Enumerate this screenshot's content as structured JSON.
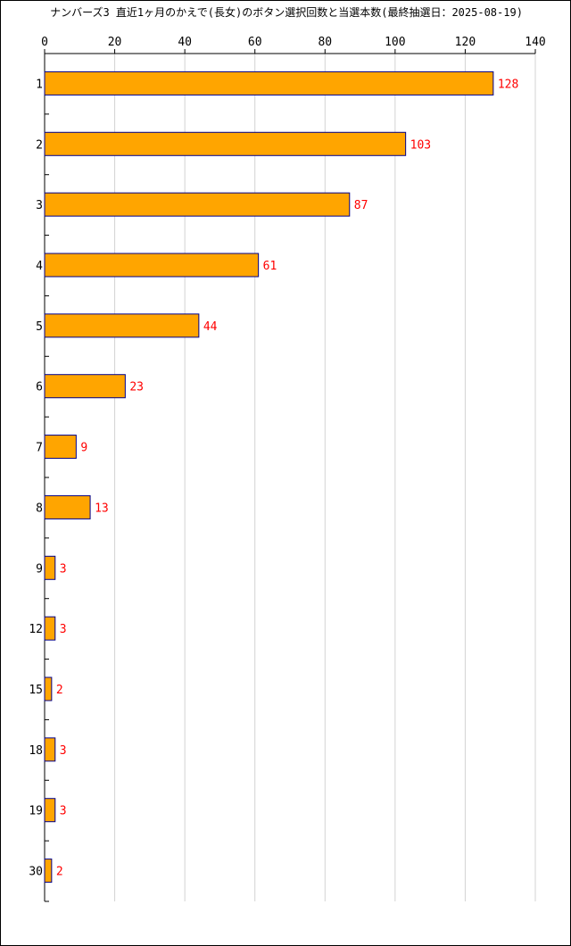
{
  "chart_data": {
    "type": "bar",
    "orientation": "horizontal",
    "title": "ナンバーズ3 直近1ヶ月のかえで(長女)のボタン選択回数と当選本数(最終抽選日：2025-08-19)",
    "categories": [
      "1",
      "2",
      "3",
      "4",
      "5",
      "6",
      "7",
      "8",
      "9",
      "12",
      "15",
      "18",
      "19",
      "30"
    ],
    "values": [
      128,
      103,
      87,
      61,
      44,
      23,
      9,
      13,
      3,
      3,
      2,
      3,
      3,
      2
    ],
    "xlim": [
      0,
      140
    ],
    "xticks": [
      0,
      20,
      40,
      60,
      80,
      100,
      120,
      140
    ],
    "grid": true,
    "legend": "none",
    "colors": {
      "bar_fill": "#FFA500",
      "bar_stroke": "#00008B",
      "value_label": "#FF0000",
      "grid": "#D3D3D3"
    }
  }
}
